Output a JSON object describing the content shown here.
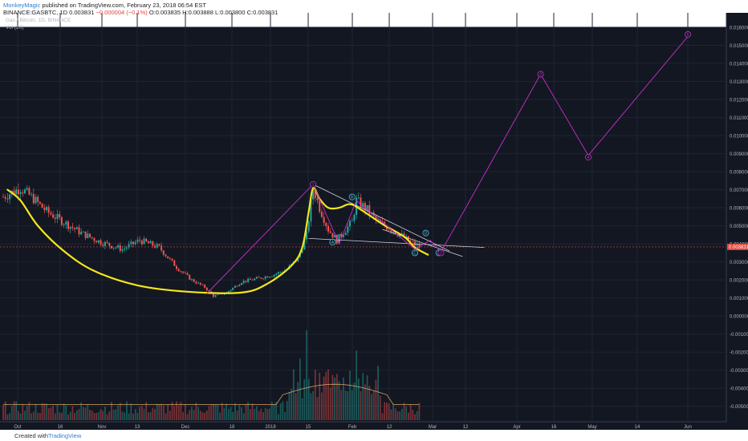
{
  "header": {
    "author": "MonkeyMagic",
    "published": "published on TradingView.com, February 23, 2018 06:54 EST",
    "symbol_line": "BINANCE:GASBTC, 1D",
    "last_value": "0.003831",
    "change": "−0.000004 (−0.1%)",
    "ohlc": "O:0.003835 H:0.003888 L:0.003800 C:0.003831",
    "chart_title": "Gas / Bitcoin, 1D, BINANCE",
    "vol_label": "Vol (20)"
  },
  "footer": {
    "created_with": "Created with",
    "brand": "TradingView"
  },
  "colors": {
    "background": "#131722",
    "bull": "#26a69a",
    "bear": "#ef5350",
    "curve": "#f5e619",
    "wave": "#c62fcb",
    "trendline": "#cfd3dc",
    "price_line": "#e0483d",
    "volume_ma": "#d7a25c"
  },
  "chart_data": {
    "type": "candlestick",
    "x_tick_labels": [
      "Oct",
      "16",
      "Nov",
      "13",
      "Dec",
      "18",
      "2018",
      "15",
      "Feb",
      "12",
      "Mar",
      "12",
      "Apr",
      "16",
      "May",
      "14",
      "Jun"
    ],
    "y_tick_labels": [
      "0.016000",
      "0.015000",
      "0.014000",
      "0.013000",
      "0.012000",
      "0.011000",
      "0.010000",
      "0.009000",
      "0.008000",
      "0.007000",
      "0.006000",
      "0.005000",
      "0.004000",
      "0.003000",
      "0.002000",
      "0.001000",
      "0.000000",
      "-0.001000",
      "-0.002000",
      "-0.003000",
      "-0.004000",
      "-0.005000"
    ],
    "ylim": [
      -0.0055,
      0.0168
    ],
    "current_price": 0.003831,
    "price_path": [
      {
        "d": 0,
        "p": 0.0066
      },
      {
        "d": 8,
        "p": 0.0071
      },
      {
        "d": 14,
        "p": 0.0065
      },
      {
        "d": 20,
        "p": 0.0058
      },
      {
        "d": 28,
        "p": 0.0052
      },
      {
        "d": 36,
        "p": 0.0046
      },
      {
        "d": 45,
        "p": 0.0041
      },
      {
        "d": 55,
        "p": 0.0037
      },
      {
        "d": 63,
        "p": 0.0042
      },
      {
        "d": 72,
        "p": 0.0038
      },
      {
        "d": 80,
        "p": 0.0027
      },
      {
        "d": 87,
        "p": 0.002
      },
      {
        "d": 93,
        "p": 0.0016
      },
      {
        "d": 97,
        "p": 0.0011
      },
      {
        "d": 103,
        "p": 0.0013
      },
      {
        "d": 110,
        "p": 0.0019
      },
      {
        "d": 118,
        "p": 0.0021
      },
      {
        "d": 125,
        "p": 0.0023
      },
      {
        "d": 131,
        "p": 0.0026
      },
      {
        "d": 136,
        "p": 0.0032
      },
      {
        "d": 140,
        "p": 0.0045
      },
      {
        "d": 143,
        "p": 0.0071
      },
      {
        "d": 146,
        "p": 0.006
      },
      {
        "d": 150,
        "p": 0.0048
      },
      {
        "d": 154,
        "p": 0.0042
      },
      {
        "d": 158,
        "p": 0.0048
      },
      {
        "d": 161,
        "p": 0.0052
      },
      {
        "d": 163,
        "p": 0.0064
      },
      {
        "d": 168,
        "p": 0.0059
      },
      {
        "d": 172,
        "p": 0.0053
      },
      {
        "d": 176,
        "p": 0.005
      },
      {
        "d": 182,
        "p": 0.0046
      },
      {
        "d": 188,
        "p": 0.0041
      },
      {
        "d": 192,
        "p": 0.00383
      }
    ],
    "volume_spikes": [
      {
        "d": 140,
        "v": 0.8
      },
      {
        "d": 137,
        "v": 0.55
      },
      {
        "d": 163,
        "v": 0.62
      },
      {
        "d": 166,
        "v": 0.42
      },
      {
        "d": 144,
        "v": 0.45
      }
    ],
    "rounding_bottom_curve": [
      {
        "d": 2,
        "p": 0.007
      },
      {
        "d": 8,
        "p": 0.0064
      },
      {
        "d": 16,
        "p": 0.005
      },
      {
        "d": 28,
        "p": 0.0036
      },
      {
        "d": 42,
        "p": 0.0025
      },
      {
        "d": 62,
        "p": 0.0017
      },
      {
        "d": 85,
        "p": 0.00135
      },
      {
        "d": 110,
        "p": 0.0013
      },
      {
        "d": 122,
        "p": 0.0018
      },
      {
        "d": 133,
        "p": 0.0028
      },
      {
        "d": 138,
        "p": 0.0038
      },
      {
        "d": 141,
        "p": 0.0058
      },
      {
        "d": 143,
        "p": 0.0071
      },
      {
        "d": 146,
        "p": 0.0065
      },
      {
        "d": 150,
        "p": 0.006
      },
      {
        "d": 155,
        "p": 0.006
      },
      {
        "d": 160,
        "p": 0.0062
      },
      {
        "d": 165,
        "p": 0.0059
      },
      {
        "d": 175,
        "p": 0.0051
      },
      {
        "d": 185,
        "p": 0.0044
      },
      {
        "d": 190,
        "p": 0.0038
      },
      {
        "d": 196,
        "p": 0.0034
      }
    ],
    "wave_path": [
      {
        "d": 94,
        "p": 0.00125
      },
      {
        "d": 143,
        "p": 0.0073
      },
      {
        "d": 155,
        "p": 0.004
      },
      {
        "d": 163,
        "p": 0.0064
      },
      {
        "d": 190,
        "p": 0.0037
      },
      {
        "d": 197,
        "p": 0.0042
      },
      {
        "d": 202,
        "p": 0.00355
      },
      {
        "d": 248,
        "p": 0.0134
      },
      {
        "d": 270,
        "p": 0.0089
      },
      {
        "d": 316,
        "p": 0.0155
      }
    ],
    "trendline_upper": [
      {
        "d": 143,
        "p": 0.0073
      },
      {
        "d": 206,
        "p": 0.0036
      }
    ],
    "trendline_lower": [
      {
        "d": 141,
        "p": 0.0043
      },
      {
        "d": 222,
        "p": 0.0038
      }
    ],
    "trendline_lower2": [
      {
        "d": 175,
        "p": 0.0048
      },
      {
        "d": 212,
        "p": 0.0033
      }
    ],
    "wave_labels": [
      {
        "label": "1",
        "d": 143,
        "p": 0.0073,
        "color": "#c62fcb"
      },
      {
        "label": "A",
        "d": 152,
        "p": 0.0041,
        "color": "#4cc3d9"
      },
      {
        "label": "B",
        "d": 161,
        "p": 0.0066,
        "color": "#4cc3d9"
      },
      {
        "label": "C",
        "d": 190,
        "p": 0.0035,
        "color": "#4cc3d9"
      },
      {
        "label": "D",
        "d": 195,
        "p": 0.0046,
        "color": "#4cc3d9"
      },
      {
        "label": "E",
        "d": 201,
        "p": 0.0035,
        "color": "#4cc3d9"
      },
      {
        "label": "2",
        "d": 202,
        "p": 0.0035,
        "color": "#c62fcb"
      },
      {
        "label": "3",
        "d": 248,
        "p": 0.0134,
        "color": "#c62fcb"
      },
      {
        "label": "4",
        "d": 270,
        "p": 0.0088,
        "color": "#c62fcb"
      },
      {
        "label": "5",
        "d": 316,
        "p": 0.0156,
        "color": "#c62fcb"
      }
    ]
  }
}
